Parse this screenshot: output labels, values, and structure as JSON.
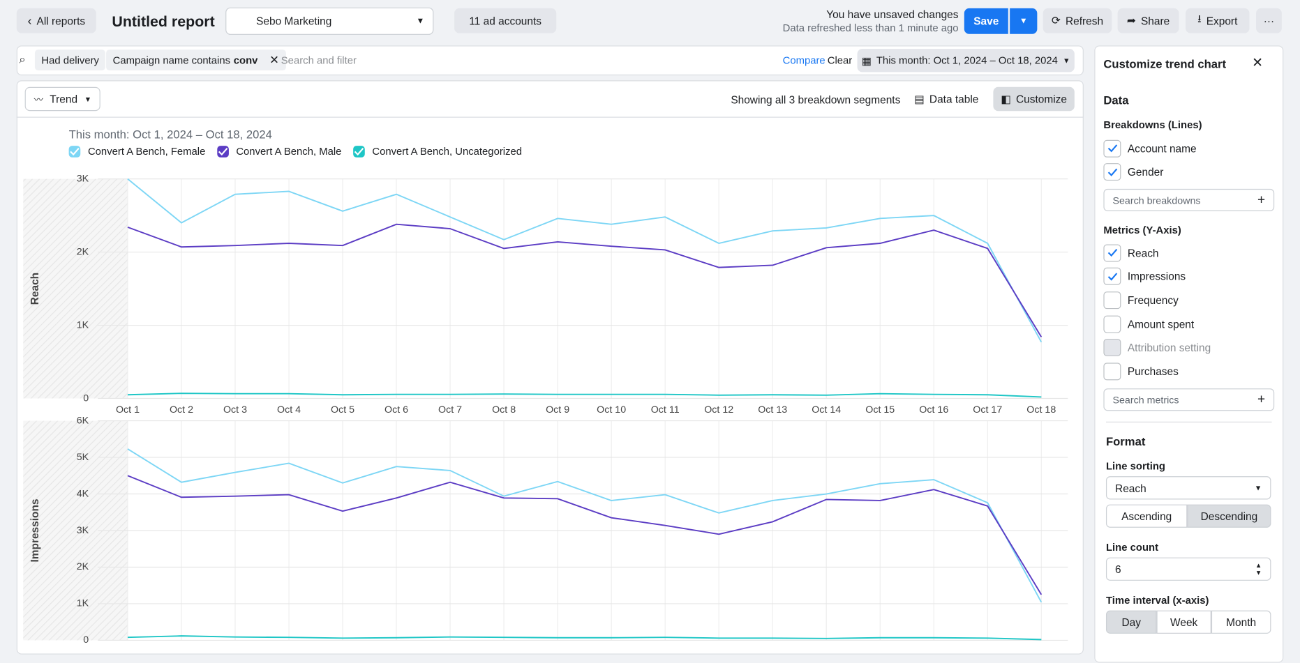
{
  "header": {
    "back": "All reports",
    "title": "Untitled report",
    "account": "Sebo Marketing",
    "ad_accounts": "11 ad accounts",
    "status": "You have unsaved changes",
    "refreshed": "Data refreshed less than 1 minute ago",
    "save": "Save",
    "refresh": "Refresh",
    "share": "Share",
    "export": "Export"
  },
  "filters": {
    "chip": "Had delivery",
    "campaign_chip": "Campaign name contains",
    "campaign_value": "conv",
    "placeholder": "Search and filter",
    "compare": "Compare",
    "clear": "Clear",
    "date": "This month: Oct 1, 2024 – Oct 18, 2024"
  },
  "toolbar": {
    "view": "Trend",
    "segments": "Showing all 3 breakdown segments",
    "data_table": "Data table",
    "customize": "Customize"
  },
  "chart_subtitle": "This month: Oct 1, 2024 – Oct 18, 2024",
  "chart_data": [
    {
      "type": "line",
      "ylabel": "Reach",
      "categories": [
        "Oct 1",
        "Oct 2",
        "Oct 3",
        "Oct 4",
        "Oct 5",
        "Oct 6",
        "Oct 7",
        "Oct 8",
        "Oct 9",
        "Oct 10",
        "Oct 11",
        "Oct 12",
        "Oct 13",
        "Oct 14",
        "Oct 15",
        "Oct 16",
        "Oct 17",
        "Oct 18"
      ],
      "series": [
        {
          "name": "Convert A Bench, Female",
          "color": "#7dd6f5",
          "values": [
            3000,
            2400,
            2790,
            2830,
            2560,
            2790,
            2480,
            2170,
            2460,
            2380,
            2480,
            2120,
            2290,
            2330,
            2460,
            2500,
            2120,
            770
          ]
        },
        {
          "name": "Convert A Bench, Male",
          "color": "#5b3cc4",
          "values": [
            2340,
            2070,
            2090,
            2120,
            2090,
            2380,
            2320,
            2050,
            2140,
            2080,
            2030,
            1790,
            1820,
            2060,
            2120,
            2300,
            2050,
            840
          ]
        },
        {
          "name": "Convert A Bench, Uncategorized",
          "color": "#1ec6c6",
          "values": [
            50,
            70,
            65,
            65,
            50,
            55,
            55,
            60,
            55,
            55,
            55,
            45,
            50,
            45,
            65,
            55,
            50,
            20
          ]
        }
      ],
      "ylim": [
        0,
        3000
      ],
      "yticks": [
        0,
        {
          "value": 1000,
          "label": "1K"
        },
        {
          "value": 2000,
          "label": "2K"
        },
        {
          "value": 3000,
          "label": "3K"
        }
      ],
      "grid": true
    },
    {
      "type": "line",
      "ylabel": "Impressions",
      "series": [
        {
          "color": "#7dd6f5",
          "values": [
            5230,
            4320,
            4590,
            4840,
            4300,
            4750,
            4640,
            3940,
            4340,
            3820,
            3980,
            3480,
            3820,
            4000,
            4280,
            4390,
            3760,
            1040
          ]
        },
        {
          "color": "#5b3cc4",
          "values": [
            4500,
            3910,
            3940,
            3980,
            3530,
            3890,
            4320,
            3890,
            3870,
            3350,
            3140,
            2900,
            3240,
            3850,
            3820,
            4120,
            3670,
            1250
          ]
        },
        {
          "color": "#1ec6c6",
          "values": [
            80,
            120,
            90,
            80,
            60,
            70,
            90,
            80,
            70,
            70,
            80,
            60,
            60,
            50,
            70,
            70,
            60,
            20
          ]
        }
      ],
      "ylim": [
        0,
        6000
      ],
      "yticks": [
        0,
        {
          "value": 1000,
          "label": "1K"
        },
        {
          "value": 2000,
          "label": "2K"
        },
        {
          "value": 3000,
          "label": "3K"
        },
        {
          "value": 4000,
          "label": "4K"
        },
        {
          "value": 5000,
          "label": "5K"
        },
        {
          "value": 6000,
          "label": "6K"
        }
      ],
      "grid": true
    }
  ],
  "panel": {
    "title": "Customize trend chart",
    "data_heading": "Data",
    "breakdowns_heading": "Breakdowns (Lines)",
    "breakdowns": [
      {
        "label": "Account name",
        "checked": true
      },
      {
        "label": "Gender",
        "checked": true
      }
    ],
    "search_breakdowns": "Search breakdowns",
    "metrics_heading": "Metrics (Y-Axis)",
    "metrics": [
      {
        "label": "Reach",
        "checked": true
      },
      {
        "label": "Impressions",
        "checked": true
      },
      {
        "label": "Frequency",
        "checked": false
      },
      {
        "label": "Amount spent",
        "checked": false
      },
      {
        "label": "Attribution setting",
        "checked": false,
        "disabled": true
      },
      {
        "label": "Purchases",
        "checked": false
      }
    ],
    "search_metrics": "Search metrics",
    "format_heading": "Format",
    "line_sorting": "Line sorting",
    "sort_by": "Reach",
    "sort_options": [
      "Ascending",
      "Descending"
    ],
    "sort_selected": 1,
    "line_count_label": "Line count",
    "line_count": 6,
    "interval_label": "Time interval (x-axis)",
    "intervals": [
      "Day",
      "Week",
      "Month"
    ],
    "interval_selected": 0
  }
}
